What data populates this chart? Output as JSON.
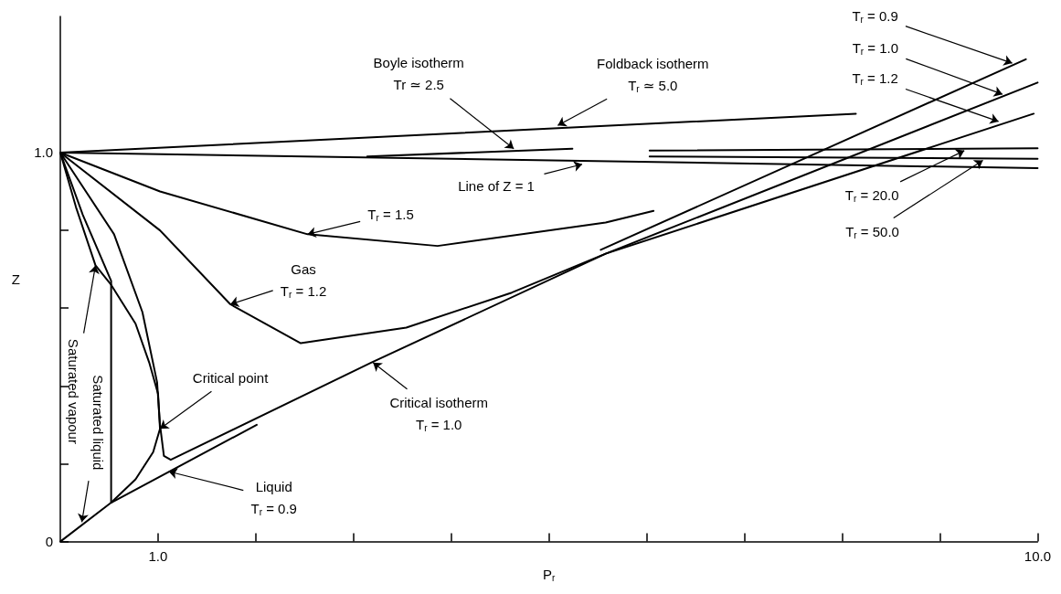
{
  "chart_data": {
    "type": "line",
    "xlabel": "P$_{r}$",
    "ylabel": "Z",
    "xlim": [
      0,
      10
    ],
    "ylim": [
      0,
      1.35
    ],
    "xticks": [
      {
        "value": 1,
        "label": "1.0"
      },
      {
        "value": 2,
        "label": null
      },
      {
        "value": 3,
        "label": null
      },
      {
        "value": 4,
        "label": null
      },
      {
        "value": 5,
        "label": null
      },
      {
        "value": 6,
        "label": null
      },
      {
        "value": 7,
        "label": null
      },
      {
        "value": 8,
        "label": null
      },
      {
        "value": 9,
        "label": null
      },
      {
        "value": 10,
        "label": "10.0"
      }
    ],
    "yticks": [
      0,
      {
        "value": 0.2,
        "label": null
      },
      {
        "value": 0.4,
        "label": null
      },
      {
        "value": 0.6,
        "label": null
      },
      {
        "value": 0.8,
        "label": null
      },
      {
        "value": 1,
        "label": "1.0"
      }
    ],
    "marker": "none",
    "series": [
      {
        "color": "#000000",
        "x": [
          0,
          10
        ],
        "values": [
          1,
          0.96
        ]
      },
      {
        "color": "#000000",
        "x": [
          0,
          8.14
        ],
        "values": [
          1,
          1.1
        ]
      },
      {
        "color": "#000000",
        "x": [
          3.14,
          5.24
        ],
        "values": [
          0.99,
          1.01
        ]
      },
      {
        "color": "#000000",
        "x": [
          6.03,
          10
        ],
        "values": [
          1.005,
          1.011
        ]
      },
      {
        "color": "#000000",
        "x": [
          6.03,
          10
        ],
        "values": [
          0.99,
          0.984
        ]
      },
      {
        "color": "#000000",
        "x": [
          0,
          0.16,
          0.36,
          0.52,
          0.77,
          0.91,
          1.0,
          1.02
        ],
        "values": [
          1,
          0.86,
          0.71,
          0.66,
          0.56,
          0.46,
          0.38,
          0.29
        ]
      },
      {
        "color": "#000000",
        "x": [
          0,
          0.52,
          0.77,
          0.95,
          1.02
        ],
        "values": [
          0,
          0.1,
          0.16,
          0.23,
          0.29
        ]
      },
      {
        "color": "#000000",
        "x": [
          0,
          0.23,
          0.52,
          0.52,
          2.01
        ],
        "values": [
          1,
          0.84,
          0.67,
          0.1,
          0.3
        ]
      },
      {
        "color": "#000000",
        "x": [
          5.53,
          9.88
        ],
        "values": [
          0.75,
          1.24
        ]
      },
      {
        "color": "#000000",
        "x": [
          0,
          0.55,
          0.84,
          0.99,
          1.02,
          1.06,
          1.13,
          3.18,
          5.58,
          10
        ],
        "values": [
          1,
          0.79,
          0.59,
          0.41,
          0.3,
          0.22,
          0.21,
          0.46,
          0.74,
          1.18
        ]
      },
      {
        "color": "#000000",
        "x": [
          0,
          1.02,
          1.74,
          2.46,
          3.54,
          4.62,
          5.58,
          9.96
        ],
        "values": [
          1,
          0.8,
          0.61,
          0.51,
          0.55,
          0.64,
          0.74,
          1.1
        ]
      },
      {
        "color": "#000000",
        "x": [
          0,
          1.02,
          2.53,
          3.86,
          5.58,
          6.07
        ],
        "values": [
          1,
          0.9,
          0.79,
          0.76,
          0.82,
          0.85
        ]
      }
    ],
    "annotations": [
      {
        "text": "Boyle isotherm\nTr ≃ 2.5",
        "x": 4.64,
        "y": 1.01
      },
      {
        "text": "Foldback isotherm\nT$_{r}$ ≃ 5.0",
        "x": 5.09,
        "y": 1.07
      },
      {
        "text": "Line of Z = 1",
        "x": 5.34,
        "y": 0.97
      },
      {
        "text": "T$_{r}$ = 1.5",
        "x": 2.53,
        "y": 0.79
      },
      {
        "text": "Gas\nT$_{r}$ = 1.2",
        "x": 1.74,
        "y": 0.61
      },
      {
        "text": "Critical point",
        "x": 1.02,
        "y": 0.29
      },
      {
        "text": "Critical isotherm\nT$_{r}$ = 1.0",
        "x": 3.2,
        "y": 0.46
      },
      {
        "text": "Liquid\nT$_{r}$ = 0.9",
        "x": 1.11,
        "y": 0.18
      },
      {
        "text": "Saturated vapour",
        "x": 0.36,
        "y": 0.71
      },
      {
        "text": "Saturated liquid",
        "x": 0.22,
        "y": 0.05
      },
      {
        "text": "T$_{r}$ = 0.9",
        "x": 9.74,
        "y": 1.23
      },
      {
        "text": "T$_{r}$ = 1.0",
        "x": 9.64,
        "y": 1.15
      },
      {
        "text": "T$_{r}$ = 1.2",
        "x": 9.6,
        "y": 1.08
      },
      {
        "text": "T$_{r}$ = 20.0",
        "x": 9.25,
        "y": 1.005
      },
      {
        "text": "T$_{r}$ = 50.0",
        "x": 9.44,
        "y": 0.98
      }
    ]
  }
}
